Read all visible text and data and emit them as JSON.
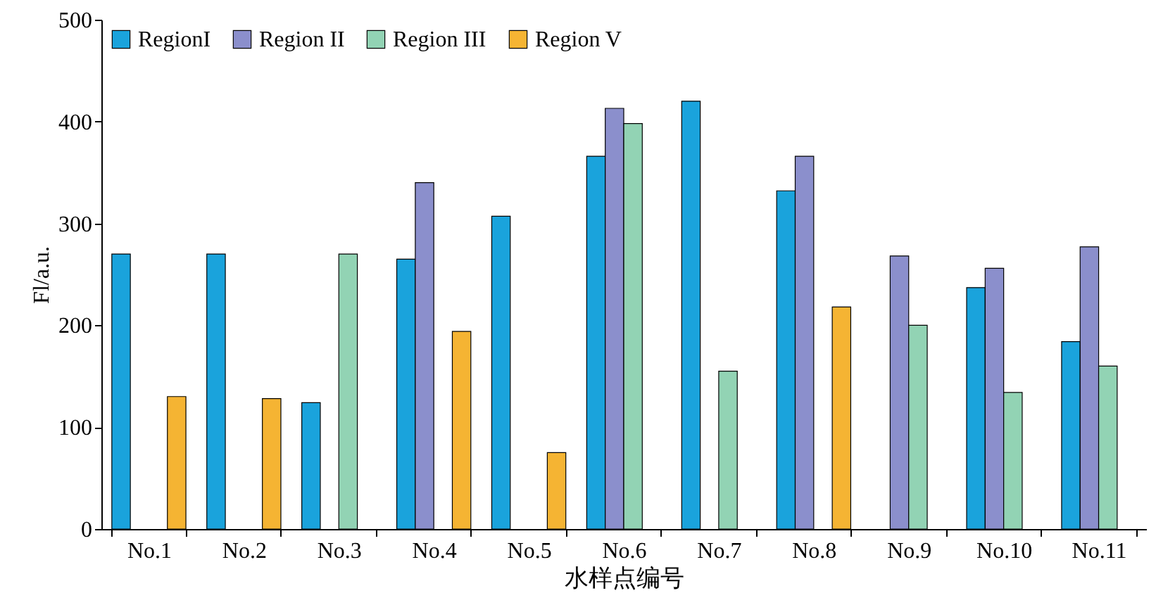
{
  "chart_data": {
    "type": "bar",
    "xlabel": "水样点编号",
    "ylabel": "Fl/a.u.",
    "categories": [
      "No.1",
      "No.2",
      "No.3",
      "No.4",
      "No.5",
      "No.6",
      "No.7",
      "No.8",
      "No.9",
      "No.10",
      "No.11"
    ],
    "series": [
      {
        "name": "RegionI",
        "color": "#1aa3dc",
        "values": [
          270,
          270,
          124,
          265,
          307,
          366,
          420,
          332,
          null,
          237,
          184
        ]
      },
      {
        "name": "Region II",
        "color": "#8b8fcc",
        "values": [
          null,
          null,
          null,
          340,
          null,
          413,
          null,
          366,
          268,
          256,
          277
        ]
      },
      {
        "name": "Region III",
        "color": "#92d3b4",
        "values": [
          null,
          null,
          270,
          null,
          null,
          398,
          155,
          null,
          200,
          134,
          160
        ]
      },
      {
        "name": "Region V",
        "color": "#f5b433",
        "values": [
          130,
          128,
          null,
          194,
          75,
          null,
          null,
          218,
          null,
          null,
          null
        ]
      }
    ],
    "ylim": [
      0,
      500
    ],
    "yticks": [
      0,
      100,
      200,
      300,
      400,
      500
    ],
    "grid": false,
    "legend": "top left"
  }
}
